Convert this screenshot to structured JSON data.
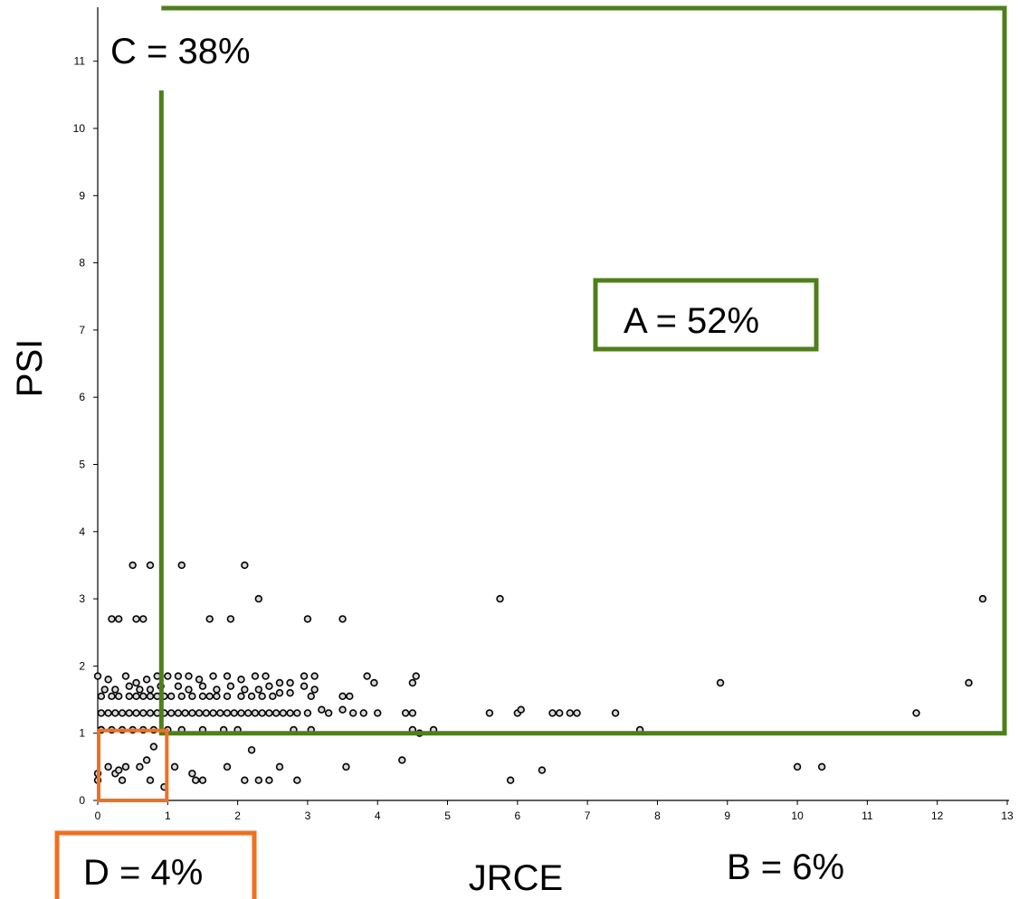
{
  "chart_data": {
    "type": "scatter",
    "xlabel": "JRCE",
    "ylabel": "PSI",
    "xlim": [
      0,
      13
    ],
    "ylim": [
      0,
      11.5
    ],
    "x_ticks": [
      "0",
      "1",
      "2",
      "3",
      "4",
      "5",
      "6",
      "7",
      "8",
      "9",
      "10",
      "11",
      "12",
      "13"
    ],
    "y_ticks": [
      "0",
      "1",
      "2",
      "3",
      "4",
      "5",
      "6",
      "7",
      "8",
      "9",
      "10",
      "11"
    ],
    "colors": {
      "region_A_C": "#4f7f1a",
      "region_D": "#f07020",
      "points": "#000000"
    },
    "regions": [
      {
        "id": "A",
        "label": "A = 52%",
        "x_range": [
          1,
          13
        ],
        "y_range": [
          1,
          11.5
        ]
      },
      {
        "id": "B",
        "label": "B = 6%"
      },
      {
        "id": "C",
        "label": "C = 38%"
      },
      {
        "id": "D",
        "label": "D = 4%",
        "x_range": [
          0,
          1
        ],
        "y_range": [
          0,
          1
        ]
      }
    ],
    "points": [
      [
        0.0,
        0.3
      ],
      [
        0.0,
        0.4
      ],
      [
        0.05,
        1.05
      ],
      [
        0.15,
        0.5
      ],
      [
        0.25,
        0.4
      ],
      [
        0.3,
        0.45
      ],
      [
        0.35,
        0.3
      ],
      [
        0.4,
        0.5
      ],
      [
        0.6,
        0.5
      ],
      [
        0.7,
        0.6
      ],
      [
        0.75,
        0.3
      ],
      [
        0.8,
        0.8
      ],
      [
        0.95,
        0.2
      ],
      [
        1.1,
        0.5
      ],
      [
        0.2,
        2.7
      ],
      [
        0.3,
        2.7
      ],
      [
        0.55,
        2.7
      ],
      [
        0.65,
        2.7
      ],
      [
        0.5,
        3.5
      ],
      [
        0.75,
        3.5
      ],
      [
        1.2,
        3.5
      ],
      [
        2.1,
        3.5
      ],
      [
        1.6,
        2.7
      ],
      [
        1.9,
        2.7
      ],
      [
        3.0,
        2.7
      ],
      [
        3.5,
        2.7
      ],
      [
        2.3,
        3.0
      ],
      [
        5.75,
        3.0
      ],
      [
        12.65,
        3.0
      ],
      [
        0.05,
        1.05
      ],
      [
        0.2,
        1.05
      ],
      [
        0.35,
        1.05
      ],
      [
        0.5,
        1.05
      ],
      [
        0.65,
        1.05
      ],
      [
        0.8,
        1.05
      ],
      [
        1.0,
        1.05
      ],
      [
        1.2,
        1.05
      ],
      [
        1.5,
        1.05
      ],
      [
        1.8,
        1.05
      ],
      [
        2.0,
        1.05
      ],
      [
        2.8,
        1.05
      ],
      [
        3.05,
        1.05
      ],
      [
        4.5,
        1.05
      ],
      [
        4.6,
        1.0
      ],
      [
        4.8,
        1.05
      ],
      [
        7.75,
        1.05
      ],
      [
        0.05,
        1.3
      ],
      [
        0.15,
        1.3
      ],
      [
        0.25,
        1.3
      ],
      [
        0.35,
        1.3
      ],
      [
        0.45,
        1.3
      ],
      [
        0.55,
        1.3
      ],
      [
        0.65,
        1.3
      ],
      [
        0.75,
        1.3
      ],
      [
        0.85,
        1.3
      ],
      [
        0.95,
        1.3
      ],
      [
        1.05,
        1.3
      ],
      [
        1.15,
        1.3
      ],
      [
        1.25,
        1.3
      ],
      [
        1.35,
        1.3
      ],
      [
        1.45,
        1.3
      ],
      [
        1.55,
        1.3
      ],
      [
        1.65,
        1.3
      ],
      [
        1.75,
        1.3
      ],
      [
        1.85,
        1.3
      ],
      [
        1.95,
        1.3
      ],
      [
        2.05,
        1.3
      ],
      [
        2.15,
        1.3
      ],
      [
        2.25,
        1.3
      ],
      [
        2.35,
        1.3
      ],
      [
        2.45,
        1.3
      ],
      [
        2.55,
        1.3
      ],
      [
        2.65,
        1.3
      ],
      [
        2.75,
        1.3
      ],
      [
        2.85,
        1.3
      ],
      [
        3.0,
        1.3
      ],
      [
        3.2,
        1.35
      ],
      [
        3.3,
        1.3
      ],
      [
        3.5,
        1.35
      ],
      [
        3.65,
        1.3
      ],
      [
        3.8,
        1.3
      ],
      [
        4.0,
        1.3
      ],
      [
        4.4,
        1.3
      ],
      [
        4.5,
        1.3
      ],
      [
        5.6,
        1.3
      ],
      [
        6.0,
        1.3
      ],
      [
        6.05,
        1.35
      ],
      [
        6.5,
        1.3
      ],
      [
        6.6,
        1.3
      ],
      [
        6.75,
        1.3
      ],
      [
        6.85,
        1.3
      ],
      [
        7.4,
        1.3
      ],
      [
        11.7,
        1.3
      ],
      [
        0.05,
        1.55
      ],
      [
        0.2,
        1.55
      ],
      [
        0.3,
        1.55
      ],
      [
        0.45,
        1.55
      ],
      [
        0.55,
        1.55
      ],
      [
        0.65,
        1.55
      ],
      [
        0.75,
        1.55
      ],
      [
        0.85,
        1.55
      ],
      [
        0.95,
        1.55
      ],
      [
        1.05,
        1.55
      ],
      [
        1.2,
        1.55
      ],
      [
        1.35,
        1.55
      ],
      [
        1.5,
        1.55
      ],
      [
        1.6,
        1.55
      ],
      [
        1.7,
        1.55
      ],
      [
        1.85,
        1.55
      ],
      [
        2.05,
        1.55
      ],
      [
        2.2,
        1.55
      ],
      [
        2.35,
        1.55
      ],
      [
        2.5,
        1.55
      ],
      [
        2.6,
        1.6
      ],
      [
        2.75,
        1.6
      ],
      [
        3.05,
        1.55
      ],
      [
        3.5,
        1.55
      ],
      [
        3.6,
        1.55
      ],
      [
        0.1,
        1.65
      ],
      [
        0.25,
        1.65
      ],
      [
        0.45,
        1.7
      ],
      [
        0.6,
        1.65
      ],
      [
        0.75,
        1.65
      ],
      [
        0.9,
        1.7
      ],
      [
        1.15,
        1.7
      ],
      [
        1.3,
        1.65
      ],
      [
        1.5,
        1.7
      ],
      [
        1.7,
        1.65
      ],
      [
        1.9,
        1.7
      ],
      [
        2.1,
        1.65
      ],
      [
        2.3,
        1.65
      ],
      [
        2.45,
        1.7
      ],
      [
        2.6,
        1.75
      ],
      [
        2.75,
        1.75
      ],
      [
        2.95,
        1.7
      ],
      [
        3.1,
        1.65
      ],
      [
        0.0,
        1.85
      ],
      [
        0.15,
        1.8
      ],
      [
        0.4,
        1.85
      ],
      [
        0.55,
        1.75
      ],
      [
        0.7,
        1.8
      ],
      [
        0.85,
        1.85
      ],
      [
        1.0,
        1.85
      ],
      [
        1.15,
        1.85
      ],
      [
        1.3,
        1.85
      ],
      [
        1.45,
        1.8
      ],
      [
        1.65,
        1.85
      ],
      [
        1.85,
        1.85
      ],
      [
        2.05,
        1.8
      ],
      [
        2.25,
        1.85
      ],
      [
        2.4,
        1.85
      ],
      [
        2.95,
        1.85
      ],
      [
        3.1,
        1.85
      ],
      [
        3.85,
        1.85
      ],
      [
        3.95,
        1.75
      ],
      [
        4.55,
        1.85
      ],
      [
        4.5,
        1.75
      ],
      [
        8.9,
        1.75
      ],
      [
        12.45,
        1.75
      ],
      [
        1.35,
        0.4
      ],
      [
        1.4,
        0.3
      ],
      [
        1.5,
        0.3
      ],
      [
        1.85,
        0.5
      ],
      [
        2.2,
        0.75
      ],
      [
        2.1,
        0.3
      ],
      [
        2.3,
        0.3
      ],
      [
        2.45,
        0.3
      ],
      [
        2.6,
        0.5
      ],
      [
        2.85,
        0.3
      ],
      [
        3.55,
        0.5
      ],
      [
        4.35,
        0.6
      ],
      [
        5.9,
        0.3
      ],
      [
        6.35,
        0.45
      ],
      [
        10.0,
        0.5
      ],
      [
        10.35,
        0.5
      ]
    ]
  }
}
